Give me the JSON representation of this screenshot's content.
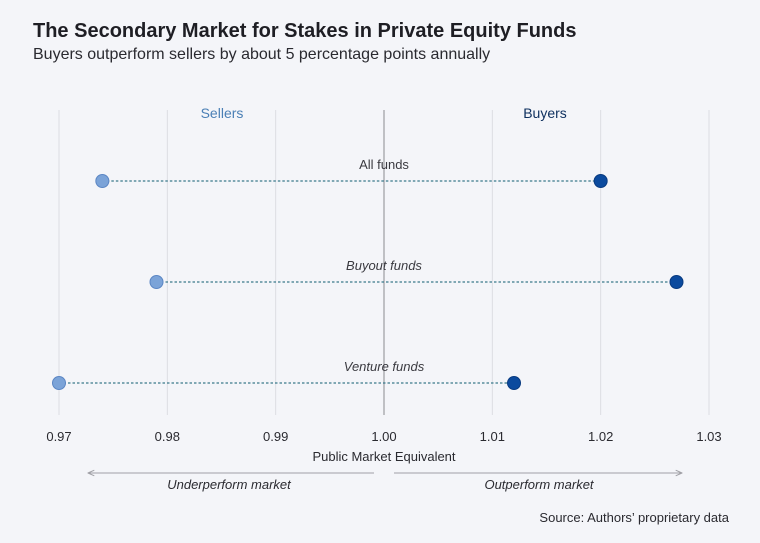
{
  "title": "The Secondary Market for Stakes in Private Equity Funds",
  "subtitle": "Buyers outperform sellers by about 5 percentage points annually",
  "source": "Source: Authors’ proprietary data",
  "chart_data": {
    "type": "scatter",
    "subtype": "dumbbell",
    "xlabel": "Public Market Equivalent",
    "xlim": [
      0.97,
      1.03
    ],
    "xticks": [
      0.97,
      0.98,
      0.99,
      1.0,
      1.01,
      1.02,
      1.03
    ],
    "xtick_labels": [
      "0.97",
      "0.98",
      "0.99",
      "1.00",
      "1.01",
      "1.02",
      "1.03"
    ],
    "reference_line": 1.0,
    "grid": true,
    "series": [
      {
        "name": "Sellers",
        "color": "#7ba3d8"
      },
      {
        "name": "Buyers",
        "color": "#0b4a9e"
      }
    ],
    "categories": [
      {
        "label": "All funds",
        "italic": false,
        "sellers": 0.974,
        "buyers": 1.02
      },
      {
        "label": "Buyout funds",
        "italic": true,
        "sellers": 0.979,
        "buyers": 1.027
      },
      {
        "label": "Venture funds",
        "italic": true,
        "sellers": 0.97,
        "buyers": 1.012
      }
    ],
    "annotations": {
      "left_arrow": "Underperform market",
      "right_arrow": "Outperform market"
    },
    "colors": {
      "sellers_label": "#4a7fb5",
      "buyers_label": "#0d2f5e",
      "grid": "#dcdde3",
      "reference": "#8a8a90",
      "connector": "#3b7a8c",
      "arrow": "#a0a0a6"
    }
  }
}
